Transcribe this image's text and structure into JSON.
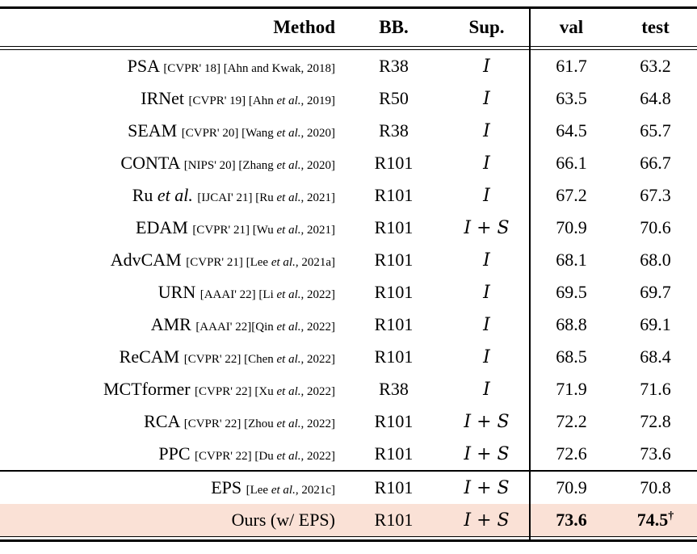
{
  "table": {
    "header": {
      "method": "Method",
      "bb": "BB.",
      "sup": "Sup.",
      "val": "val",
      "test": "test"
    },
    "highlight_color": "#fae1d6",
    "rows": [
      {
        "method": "PSA",
        "cite": "[CVPR' 18] [Ahn and Kwak, 2018]",
        "bb": "R38",
        "sup": "I",
        "val": "61.7",
        "test": "63.2"
      },
      {
        "method": "IRNet",
        "cite": "[CVPR' 19] [Ahn et al., 2019]",
        "bb": "R50",
        "sup": "I",
        "val": "63.5",
        "test": "64.8"
      },
      {
        "method": "SEAM",
        "cite": "[CVPR' 20] [Wang et al., 2020]",
        "bb": "R38",
        "sup": "I",
        "val": "64.5",
        "test": "65.7"
      },
      {
        "method": "CONTA",
        "cite": "[NIPS' 20] [Zhang et al., 2020]",
        "bb": "R101",
        "sup": "I",
        "val": "66.1",
        "test": "66.7"
      },
      {
        "method": "Ru et al.",
        "cite": "[IJCAI' 21] [Ru et al., 2021]",
        "bb": "R101",
        "sup": "I",
        "val": "67.2",
        "test": "67.3"
      },
      {
        "method": "EDAM",
        "cite": "[CVPR' 21] [Wu et al., 2021]",
        "bb": "R101",
        "sup": "I + S",
        "val": "70.9",
        "test": "70.6"
      },
      {
        "method": "AdvCAM",
        "cite": "[CVPR' 21] [Lee et al., 2021a]",
        "bb": "R101",
        "sup": "I",
        "val": "68.1",
        "test": "68.0"
      },
      {
        "method": "URN",
        "cite": "[AAAI' 22] [Li et al., 2022]",
        "bb": "R101",
        "sup": "I",
        "val": "69.5",
        "test": "69.7"
      },
      {
        "method": "AMR",
        "cite": "[AAAI' 22][Qin et al., 2022]",
        "bb": "R101",
        "sup": "I",
        "val": "68.8",
        "test": "69.1"
      },
      {
        "method": "ReCAM",
        "cite": "[CVPR' 22] [Chen et al., 2022]",
        "bb": "R101",
        "sup": "I",
        "val": "68.5",
        "test": "68.4"
      },
      {
        "method": "MCTformer",
        "cite": "[CVPR' 22] [Xu et al., 2022]",
        "bb": "R38",
        "sup": "I",
        "val": "71.9",
        "test": "71.6"
      },
      {
        "method": "RCA",
        "cite": "[CVPR' 22] [Zhou et al., 2022]",
        "bb": "R101",
        "sup": "I + S",
        "val": "72.2",
        "test": "72.8"
      },
      {
        "method": "PPC",
        "cite": "[CVPR' 22] [Du et al., 2022]",
        "bb": "R101",
        "sup": "I + S",
        "val": "72.6",
        "test": "73.6"
      }
    ],
    "footer_rows": [
      {
        "method": "EPS",
        "cite": "[Lee et al., 2021c]",
        "bb": "R101",
        "sup": "I + S",
        "val": "70.9",
        "test": "70.8"
      },
      {
        "method": "Ours (w/ EPS)",
        "cite": "",
        "bb": "R101",
        "sup": "I + S",
        "val": "73.6",
        "test": "74.5",
        "test_mark": "†",
        "bold_vals": true,
        "highlight": true
      }
    ]
  }
}
